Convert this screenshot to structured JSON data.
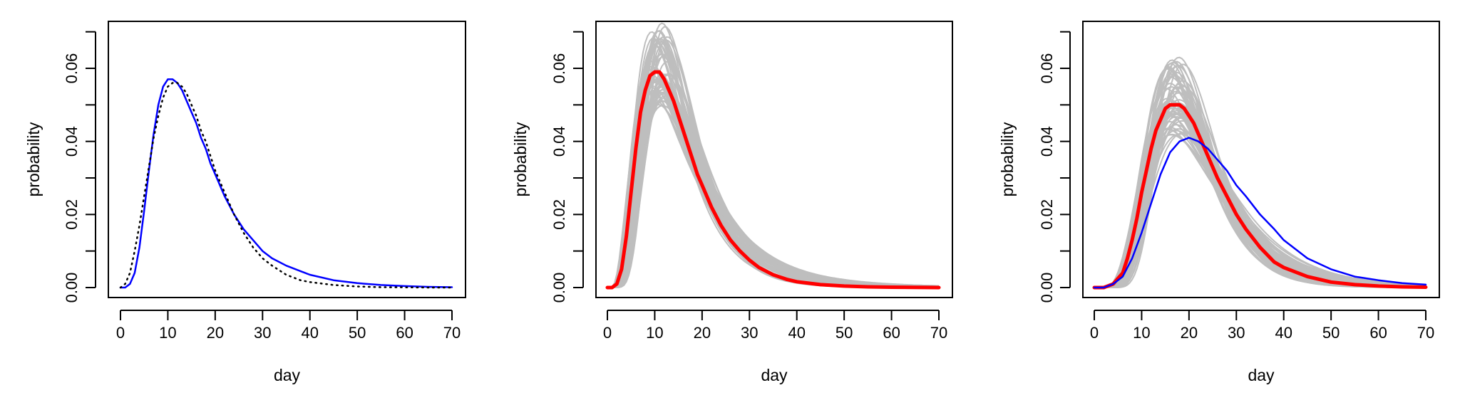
{
  "chart_data": [
    {
      "type": "line",
      "xlabel": "day",
      "ylabel": "probability",
      "xlim": [
        0,
        70
      ],
      "ylim": [
        0,
        0.07
      ],
      "x_ticks": [
        "0",
        "10",
        "20",
        "30",
        "40",
        "50",
        "60",
        "70"
      ],
      "y_ticks": [
        "0.00",
        "0.02",
        "0.04",
        "0.06"
      ],
      "grid": false,
      "series": [
        {
          "style": "solid",
          "color": "#0000ff",
          "x": [
            0,
            1,
            2,
            3,
            4,
            5,
            6,
            7,
            8,
            9,
            10,
            11,
            12,
            13,
            14,
            15,
            16,
            17,
            18,
            19,
            20,
            22,
            24,
            26,
            28,
            30,
            32,
            35,
            38,
            40,
            45,
            50,
            55,
            60,
            65,
            70
          ],
          "y": [
            0,
            0,
            0.001,
            0.004,
            0.011,
            0.021,
            0.032,
            0.042,
            0.05,
            0.055,
            0.057,
            0.057,
            0.056,
            0.054,
            0.051,
            0.048,
            0.045,
            0.041,
            0.038,
            0.034,
            0.031,
            0.025,
            0.02,
            0.016,
            0.013,
            0.01,
            0.008,
            0.006,
            0.0045,
            0.0035,
            0.002,
            0.0012,
            0.0007,
            0.0004,
            0.0002,
            0.0001
          ]
        },
        {
          "style": "dotted",
          "color": "#000000",
          "x": [
            0,
            1,
            2,
            3,
            4,
            5,
            6,
            7,
            8,
            9,
            10,
            11,
            12,
            13,
            14,
            15,
            16,
            17,
            18,
            19,
            20,
            22,
            24,
            26,
            28,
            30,
            32,
            35,
            38,
            40,
            45,
            50,
            55,
            60,
            65,
            70
          ],
          "y": [
            0,
            0.001,
            0.004,
            0.01,
            0.017,
            0.025,
            0.033,
            0.041,
            0.047,
            0.052,
            0.055,
            0.056,
            0.056,
            0.055,
            0.053,
            0.05,
            0.047,
            0.043,
            0.04,
            0.036,
            0.032,
            0.026,
            0.02,
            0.015,
            0.011,
            0.008,
            0.006,
            0.0035,
            0.002,
            0.0015,
            0.0007,
            0.0003,
            0.0001,
            5e-05,
            0,
            0
          ]
        }
      ]
    },
    {
      "type": "line",
      "xlabel": "day",
      "ylabel": "probability",
      "xlim": [
        0,
        70
      ],
      "ylim": [
        0,
        0.07
      ],
      "x_ticks": [
        "0",
        "10",
        "20",
        "30",
        "40",
        "50",
        "60",
        "70"
      ],
      "y_ticks": [
        "0.00",
        "0.02",
        "0.04",
        "0.06"
      ],
      "grid": false,
      "ensemble": {
        "color": "#bebebe",
        "count": 60,
        "peak_day_range": [
          9,
          13
        ],
        "peak_value_range": [
          0.05,
          0.072
        ]
      },
      "series": [
        {
          "style": "solid-thick",
          "color": "#ff0000",
          "x": [
            0,
            1,
            2,
            3,
            4,
            5,
            6,
            7,
            8,
            9,
            10,
            11,
            12,
            13,
            14,
            15,
            16,
            17,
            18,
            19,
            20,
            22,
            24,
            26,
            28,
            30,
            32,
            35,
            38,
            40,
            45,
            50,
            55,
            60,
            65,
            70
          ],
          "y": [
            0,
            0,
            0.001,
            0.005,
            0.014,
            0.026,
            0.038,
            0.048,
            0.054,
            0.058,
            0.059,
            0.059,
            0.057,
            0.054,
            0.051,
            0.047,
            0.043,
            0.039,
            0.035,
            0.031,
            0.028,
            0.022,
            0.017,
            0.013,
            0.01,
            0.0075,
            0.0055,
            0.0035,
            0.0022,
            0.0016,
            0.0008,
            0.0004,
            0.0002,
            0.0001,
            5e-05,
            0
          ]
        }
      ]
    },
    {
      "type": "line",
      "xlabel": "day",
      "ylabel": "probability",
      "xlim": [
        0,
        70
      ],
      "ylim": [
        0,
        0.07
      ],
      "x_ticks": [
        "0",
        "10",
        "20",
        "30",
        "40",
        "50",
        "60",
        "70"
      ],
      "y_ticks": [
        "0.00",
        "0.02",
        "0.04",
        "0.06"
      ],
      "grid": false,
      "ensemble": {
        "color": "#bebebe",
        "count": 60,
        "peak_day_range": [
          15,
          19
        ],
        "peak_value_range": [
          0.042,
          0.063
        ]
      },
      "series": [
        {
          "style": "solid-thick",
          "color": "#ff0000",
          "x": [
            0,
            2,
            4,
            6,
            7,
            8,
            9,
            10,
            11,
            12,
            13,
            14,
            15,
            16,
            17,
            18,
            19,
            20,
            21,
            22,
            24,
            26,
            28,
            30,
            32,
            35,
            38,
            40,
            45,
            50,
            55,
            60,
            65,
            70
          ],
          "y": [
            0,
            0,
            0.001,
            0.004,
            0.008,
            0.013,
            0.019,
            0.026,
            0.032,
            0.038,
            0.043,
            0.046,
            0.049,
            0.05,
            0.05,
            0.05,
            0.049,
            0.047,
            0.045,
            0.042,
            0.036,
            0.03,
            0.025,
            0.02,
            0.016,
            0.011,
            0.007,
            0.0055,
            0.003,
            0.0015,
            0.0008,
            0.0004,
            0.0002,
            0.0001
          ]
        },
        {
          "style": "solid",
          "color": "#0000ff",
          "x": [
            0,
            2,
            4,
            6,
            8,
            10,
            12,
            14,
            16,
            18,
            20,
            22,
            24,
            26,
            28,
            30,
            32,
            35,
            38,
            40,
            45,
            50,
            55,
            60,
            65,
            70
          ],
          "y": [
            0,
            0,
            0.001,
            0.003,
            0.008,
            0.015,
            0.023,
            0.031,
            0.037,
            0.04,
            0.041,
            0.04,
            0.038,
            0.035,
            0.032,
            0.028,
            0.025,
            0.02,
            0.016,
            0.013,
            0.008,
            0.005,
            0.003,
            0.002,
            0.0012,
            0.0008
          ]
        }
      ]
    }
  ]
}
